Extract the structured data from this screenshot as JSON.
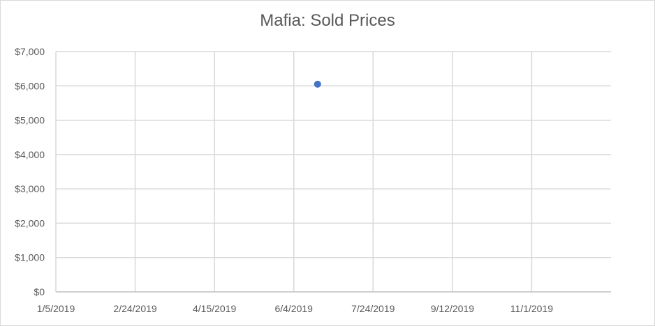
{
  "chart_data": {
    "type": "scatter",
    "title": "Mafia: Sold Prices",
    "xlabel": "",
    "ylabel": "",
    "x_ticks": [
      "1/5/2019",
      "2/24/2019",
      "4/15/2019",
      "6/4/2019",
      "7/24/2019",
      "9/12/2019",
      "11/1/2019"
    ],
    "y_ticks": [
      "$0",
      "$1,000",
      "$2,000",
      "$3,000",
      "$4,000",
      "$5,000",
      "$6,000",
      "$7,000"
    ],
    "xlim": [
      "2019-01-05",
      "2019-12-21"
    ],
    "ylim": [
      0,
      7000
    ],
    "grid": true,
    "legend": "none",
    "series": [
      {
        "color": "#4472c4",
        "points": [
          {
            "x": "2019-06-19",
            "y": 6050
          }
        ]
      }
    ]
  }
}
